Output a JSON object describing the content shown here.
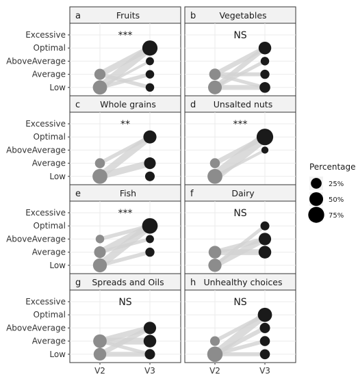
{
  "chart_data": {
    "type": "scatter",
    "y_levels": [
      "Low",
      "Average",
      "AboveAverage",
      "Optimal",
      "Excessive"
    ],
    "x_levels": [
      "V2",
      "V3"
    ],
    "legend": {
      "title": "Percentage",
      "entries": [
        {
          "label": "25%",
          "value": 25
        },
        {
          "label": "50%",
          "value": 50
        },
        {
          "label": "75%",
          "value": 75
        }
      ],
      "position": "right"
    },
    "panels": [
      {
        "tag": "a",
        "title": "Fruits",
        "significance": "***",
        "v2": [
          {
            "level": "Low",
            "pct": 55
          },
          {
            "level": "Average",
            "pct": 28
          }
        ],
        "v3": [
          {
            "level": "Low",
            "pct": 12
          },
          {
            "level": "Average",
            "pct": 12
          },
          {
            "level": "AboveAverage",
            "pct": 10
          },
          {
            "level": "Optimal",
            "pct": 66
          }
        ],
        "links": [
          [
            "Low",
            "Optimal",
            40
          ],
          [
            "Low",
            "Average",
            10
          ],
          [
            "Low",
            "AboveAverage",
            5
          ],
          [
            "Average",
            "Optimal",
            25
          ],
          [
            "Average",
            "Low",
            10
          ]
        ]
      },
      {
        "tag": "b",
        "title": "Vegetables",
        "significance": "NS",
        "v2": [
          {
            "level": "Low",
            "pct": 50
          },
          {
            "level": "Average",
            "pct": 30
          }
        ],
        "v3": [
          {
            "level": "Low",
            "pct": 25
          },
          {
            "level": "Average",
            "pct": 15
          },
          {
            "level": "AboveAverage",
            "pct": 12
          },
          {
            "level": "Optimal",
            "pct": 40
          }
        ],
        "links": [
          [
            "Low",
            "Optimal",
            22
          ],
          [
            "Low",
            "Low",
            15
          ],
          [
            "Low",
            "AboveAverage",
            10
          ],
          [
            "Average",
            "Optimal",
            18
          ],
          [
            "Average",
            "Average",
            10
          ],
          [
            "Average",
            "Low",
            8
          ]
        ]
      },
      {
        "tag": "c",
        "title": "Whole grains",
        "significance": "**",
        "v2": [
          {
            "level": "Low",
            "pct": 62
          },
          {
            "level": "Average",
            "pct": 20
          }
        ],
        "v3": [
          {
            "level": "Low",
            "pct": 18
          },
          {
            "level": "Average",
            "pct": 32
          },
          {
            "level": "Optimal",
            "pct": 44
          }
        ],
        "links": [
          [
            "Low",
            "Optimal",
            35
          ],
          [
            "Low",
            "Average",
            25
          ],
          [
            "Average",
            "Optimal",
            12
          ]
        ]
      },
      {
        "tag": "d",
        "title": "Unsalted nuts",
        "significance": "***",
        "v2": [
          {
            "level": "Low",
            "pct": 62
          },
          {
            "level": "Average",
            "pct": 20
          }
        ],
        "v3": [
          {
            "level": "AboveAverage",
            "pct": 6
          },
          {
            "level": "Optimal",
            "pct": 82
          }
        ],
        "links": [
          [
            "Low",
            "Optimal",
            55
          ],
          [
            "Average",
            "Optimal",
            18
          ],
          [
            "Low",
            "AboveAverage",
            6
          ]
        ]
      },
      {
        "tag": "e",
        "title": "Fish",
        "significance": "***",
        "v2": [
          {
            "level": "Low",
            "pct": 52
          },
          {
            "level": "Average",
            "pct": 32
          },
          {
            "level": "AboveAverage",
            "pct": 12
          }
        ],
        "v3": [
          {
            "level": "Average",
            "pct": 15
          },
          {
            "level": "AboveAverage",
            "pct": 10
          },
          {
            "level": "Optimal",
            "pct": 70
          }
        ],
        "links": [
          [
            "Low",
            "Optimal",
            40
          ],
          [
            "Low",
            "Average",
            10
          ],
          [
            "Average",
            "Optimal",
            25
          ],
          [
            "Average",
            "AboveAverage",
            8
          ],
          [
            "AboveAverage",
            "Optimal",
            10
          ]
        ]
      },
      {
        "tag": "f",
        "title": "Dairy",
        "significance": "NS",
        "v2": [
          {
            "level": "Low",
            "pct": 45
          },
          {
            "level": "Average",
            "pct": 40
          }
        ],
        "v3": [
          {
            "level": "Average",
            "pct": 40
          },
          {
            "level": "AboveAverage",
            "pct": 38
          },
          {
            "level": "Optimal",
            "pct": 14
          }
        ],
        "links": [
          [
            "Low",
            "Optimal",
            12
          ],
          [
            "Low",
            "AboveAverage",
            25
          ],
          [
            "Average",
            "AboveAverage",
            15
          ],
          [
            "Average",
            "Average",
            20
          ]
        ]
      },
      {
        "tag": "g",
        "title": "Spreads and Oils",
        "significance": "NS",
        "v2": [
          {
            "level": "Low",
            "pct": 40
          },
          {
            "level": "Average",
            "pct": 48
          }
        ],
        "v3": [
          {
            "level": "Low",
            "pct": 22
          },
          {
            "level": "Average",
            "pct": 40
          },
          {
            "level": "AboveAverage",
            "pct": 38
          }
        ],
        "links": [
          [
            "Average",
            "Average",
            25
          ],
          [
            "Average",
            "AboveAverage",
            20
          ],
          [
            "Low",
            "AboveAverage",
            18
          ],
          [
            "Low",
            "Low",
            15
          ],
          [
            "Average",
            "Low",
            8
          ]
        ]
      },
      {
        "tag": "h",
        "title": "Unhealthy choices",
        "significance": "NS",
        "v2": [
          {
            "level": "Low",
            "pct": 68
          },
          {
            "level": "Average",
            "pct": 18
          }
        ],
        "v3": [
          {
            "level": "Low",
            "pct": 20
          },
          {
            "level": "Average",
            "pct": 20
          },
          {
            "level": "AboveAverage",
            "pct": 22
          },
          {
            "level": "Optimal",
            "pct": 55
          }
        ],
        "links": [
          [
            "Low",
            "Optimal",
            40
          ],
          [
            "Low",
            "AboveAverage",
            15
          ],
          [
            "Low",
            "Average",
            10
          ],
          [
            "Low",
            "Low",
            10
          ],
          [
            "Average",
            "Optimal",
            12
          ]
        ]
      }
    ]
  },
  "colors": {
    "v2_point": "#8c8c8c",
    "v3_point": "#1a1a1a",
    "link": "#d2d2d2",
    "grid": "#ebebeb",
    "strip_bg": "#f2f2f2",
    "border": "#333333",
    "text": "#1a1a1a"
  }
}
